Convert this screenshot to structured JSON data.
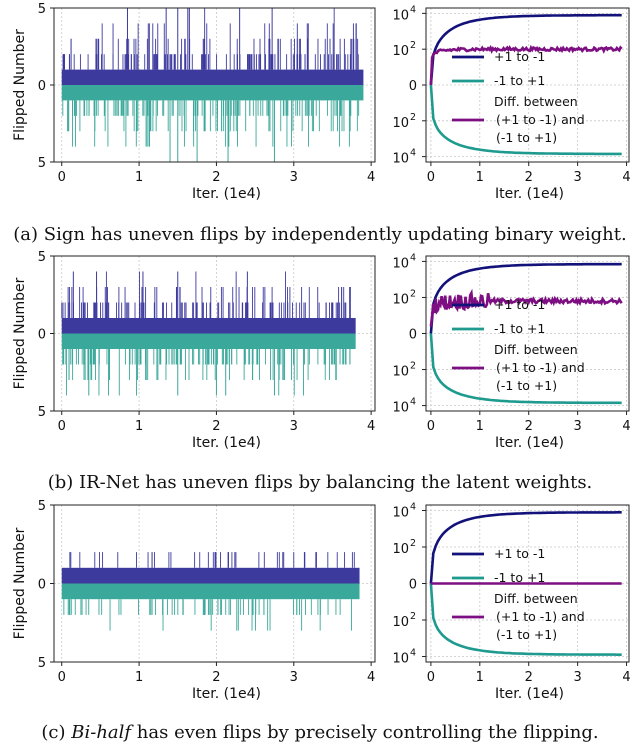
{
  "colors": {
    "positive": "#3d3a9e",
    "negative": "#3aa89a",
    "curve_pos": "#13127a",
    "curve_neg": "#1e9a8f",
    "diff": "#7d0f82",
    "grid": "#c8c8c8"
  },
  "chart_data": [
    {
      "panel": "a",
      "type": "bar",
      "ylabel": "Flipped Number",
      "xlabel": "Iter. (1e4)",
      "yticks": [
        "5",
        "0",
        "5"
      ],
      "xticks": [
        "0",
        "1",
        "2",
        "3",
        "4"
      ],
      "xlim": [
        -0.1,
        4.05
      ],
      "ylim": [
        -5,
        5
      ],
      "n_iter": 3.9,
      "series": [
        {
          "name": "+1 to -1",
          "typical": 1,
          "spike_max": 5,
          "spikes": [
            1.35,
            1.5,
            1.65,
            1.63,
            0.85,
            2.3,
            2.72
          ]
        },
        {
          "name": "-1 to +1",
          "typical": 1,
          "spike_max": 5,
          "spikes": [
            1.4,
            1.5,
            1.75,
            2.15,
            2.75
          ]
        }
      ],
      "caption": {
        "prefix": "(a) ",
        "emph": "",
        "text": "Sign has uneven flips by independently updating binary weight."
      }
    },
    {
      "panel": "a",
      "type": "line",
      "xlabel": "Iter. (1e4)",
      "xticks": [
        "0",
        "1",
        "2",
        "3",
        "4"
      ],
      "xlim": [
        -0.1,
        4.05
      ],
      "yticks": [
        "10",
        "10",
        "0",
        "10",
        "10"
      ],
      "yexp": [
        "4",
        "2",
        "",
        "2",
        "4"
      ],
      "ylim": [
        -4.3,
        4.3
      ],
      "scale": "symlog",
      "series": [
        {
          "name": "+1  to -1",
          "final_log10": 3.9
        },
        {
          "name": "-1 to +1",
          "final_log10": -3.85
        },
        {
          "name": "Diff. between (+1  to -1) and (-1  to +1)",
          "final_log10": 2.0
        }
      ],
      "legend": [
        "+1  to -1",
        "-1 to +1",
        "Diff. between",
        " (+1  to -1) and",
        "(-1  to +1)"
      ]
    },
    {
      "panel": "b",
      "type": "bar",
      "ylabel": "Flipped Number",
      "xlabel": "Iter. (1e4)",
      "yticks": [
        "5",
        "0",
        "5"
      ],
      "xticks": [
        "0",
        "1",
        "2",
        "3",
        "4"
      ],
      "xlim": [
        -0.1,
        4.05
      ],
      "ylim": [
        -5,
        5
      ],
      "n_iter": 3.8,
      "series": [
        {
          "name": "+1 to -1",
          "typical": 1,
          "spike_max": 4,
          "spikes": [
            0.15,
            0.45,
            1.05,
            1.5,
            2.4
          ]
        },
        {
          "name": "-1 to +1",
          "typical": 1,
          "spike_max": 4,
          "spikes": [
            0.35,
            1.5,
            2.0,
            2.12,
            2.75
          ]
        }
      ],
      "caption": {
        "prefix": "(b) ",
        "emph": "",
        "text": "IR-Net has uneven flips by balancing the latent weights."
      }
    },
    {
      "panel": "b",
      "type": "line",
      "xlabel": "Iter. (1e4)",
      "xticks": [
        "0",
        "1",
        "2",
        "3",
        "4"
      ],
      "xlim": [
        -0.1,
        4.05
      ],
      "yticks": [
        "10",
        "10",
        "0",
        "10",
        "10"
      ],
      "yexp": [
        "4",
        "2",
        "",
        "2",
        "4"
      ],
      "ylim": [
        -4.3,
        4.3
      ],
      "scale": "symlog",
      "series": [
        {
          "name": "+1  to -1",
          "final_log10": 3.85
        },
        {
          "name": "-1 to +1",
          "final_log10": -3.85
        },
        {
          "name": "Diff. between (+1  to -1) and (-1  to +1)",
          "final_log10": 1.8
        }
      ],
      "legend": [
        "+1  to -1",
        "-1 to +1",
        "Diff. between",
        " (+1  to -1) and",
        "(-1  to +1)"
      ]
    },
    {
      "panel": "c",
      "type": "bar",
      "ylabel": "Flipped Number",
      "xlabel": "Iter. (1e4)",
      "yticks": [
        "5",
        "0",
        "5"
      ],
      "xticks": [
        "0",
        "1",
        "2",
        "3",
        "4"
      ],
      "xlim": [
        -0.1,
        4.05
      ],
      "ylim": [
        -5,
        5
      ],
      "n_iter": 3.85,
      "series": [
        {
          "name": "+1 to -1",
          "typical": 1,
          "spike_max": 2,
          "spikes": []
        },
        {
          "name": "-1 to +1",
          "typical": 1,
          "spike_max": 3,
          "spikes": []
        }
      ],
      "caption": {
        "prefix": "(c) ",
        "emph": "Bi-half",
        "text": " has even flips by precisely controlling the flipping."
      }
    },
    {
      "panel": "c",
      "type": "line",
      "xlabel": "Iter. (1e4)",
      "xticks": [
        "0",
        "1",
        "2",
        "3",
        "4"
      ],
      "xlim": [
        -0.1,
        4.05
      ],
      "yticks": [
        "10",
        "10",
        "0",
        "10",
        "10"
      ],
      "yexp": [
        "4",
        "2",
        "",
        "2",
        "4"
      ],
      "ylim": [
        -4.3,
        4.3
      ],
      "scale": "symlog",
      "series": [
        {
          "name": "+1  to -1",
          "final_log10": 3.9
        },
        {
          "name": "-1 to +1",
          "final_log10": -3.9
        },
        {
          "name": "Diff. between (+1  to -1) and (-1  to +1)",
          "final_log10": 0
        }
      ],
      "legend": [
        "+1  to -1",
        "-1 to +1",
        "Diff. between",
        " (+1  to -1) and",
        "(-1  to +1)"
      ]
    }
  ]
}
